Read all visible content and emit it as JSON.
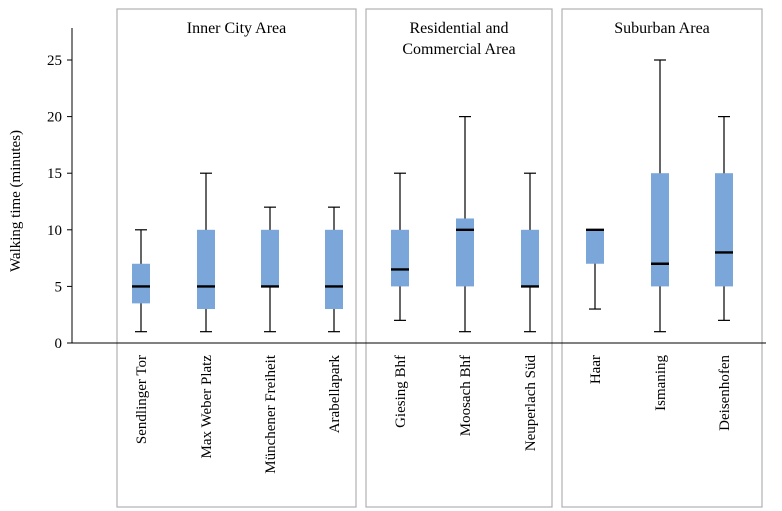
{
  "chart_data": {
    "type": "boxplot",
    "ylabel": "Walking time (minutes)",
    "ylim": [
      0,
      25
    ],
    "yticks": [
      0,
      5,
      10,
      15,
      20,
      25
    ],
    "grid": false,
    "box_color": "#7ba6d9",
    "groups": [
      {
        "name": "Inner City Area",
        "members": [
          0,
          1,
          2,
          3
        ]
      },
      {
        "name": "Residential and\nCommercial Area",
        "members": [
          4,
          5,
          6
        ]
      },
      {
        "name": "Suburban Area",
        "members": [
          7,
          8,
          9
        ]
      }
    ],
    "stations": [
      {
        "name": "Sendlinger Tor",
        "min": 1,
        "q1": 3.5,
        "median": 5,
        "q3": 7,
        "max": 10
      },
      {
        "name": "Max Weber Platz",
        "min": 1,
        "q1": 3,
        "median": 5,
        "q3": 10,
        "max": 15
      },
      {
        "name": "Münchener Freiheit",
        "min": 1,
        "q1": 5,
        "median": 5,
        "q3": 10,
        "max": 12
      },
      {
        "name": "Arabellapark",
        "min": 1,
        "q1": 3,
        "median": 5,
        "q3": 10,
        "max": 12
      },
      {
        "name": "Giesing Bhf",
        "min": 2,
        "q1": 5,
        "median": 6.5,
        "q3": 10,
        "max": 15
      },
      {
        "name": "Moosach Bhf",
        "min": 1,
        "q1": 5,
        "median": 10,
        "q3": 11,
        "max": 20
      },
      {
        "name": "Neuperlach Süd",
        "min": 1,
        "q1": 5,
        "median": 5,
        "q3": 10,
        "max": 15
      },
      {
        "name": "Haar",
        "min": 3,
        "q1": 7,
        "median": 10,
        "q3": 10,
        "max": 10
      },
      {
        "name": "Ismaning",
        "min": 1,
        "q1": 5,
        "median": 7,
        "q3": 15,
        "max": 25
      },
      {
        "name": "Deisenhofen",
        "min": 2,
        "q1": 5,
        "median": 8,
        "q3": 15,
        "max": 20
      }
    ]
  }
}
